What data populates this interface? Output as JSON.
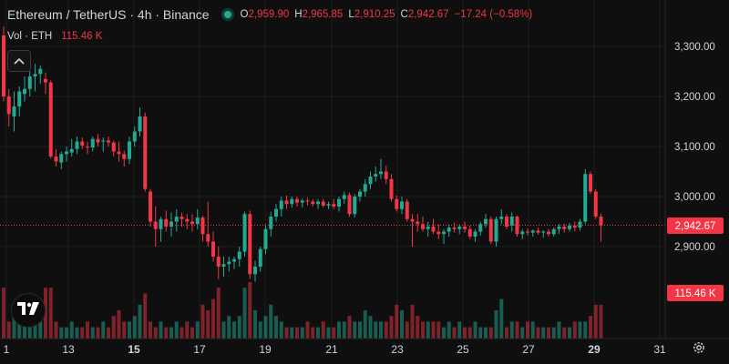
{
  "symbol": {
    "title": "Ethereum / TetherUS · 4h · Binance",
    "open_label": "O",
    "open": "2,959.90",
    "high_label": "H",
    "high": "2,965.85",
    "low_label": "L",
    "low": "2,910.25",
    "close_label": "C",
    "close": "2,942.67",
    "change": "−17.24 (−0.58%)"
  },
  "volume": {
    "label": "Vol · ETH",
    "value": "115.46 K"
  },
  "price_scale": {
    "ticks": [
      "3,300.00",
      "3,200.00",
      "3,100.00",
      "3,000.00",
      "2,900.00"
    ]
  },
  "last_price_label": "2,942.67",
  "volume_label": "115.46 K",
  "time_scale": {
    "ticks": [
      "1",
      "13",
      "15",
      "17",
      "19",
      "21",
      "23",
      "25",
      "27",
      "29",
      "31"
    ]
  },
  "colors": {
    "up": "#22ab94",
    "down": "#f23645",
    "background": "#0f0f0f",
    "grid": "#1e1e1e",
    "text": "#d1d4dc"
  },
  "icons": {
    "collapse": "chevron-up-icon",
    "logo": "tradingview-logo-icon",
    "settings": "gear-icon"
  },
  "chart_data": {
    "type": "candlestick",
    "interval": "4h",
    "ylim": [
      2830,
      3340
    ],
    "candles": [
      [
        3322,
        3340,
        3190,
        3200
      ],
      [
        3200,
        3215,
        3140,
        3165
      ],
      [
        3160,
        3210,
        3130,
        3180
      ],
      [
        3180,
        3220,
        3160,
        3210
      ],
      [
        3205,
        3240,
        3190,
        3215
      ],
      [
        3215,
        3250,
        3200,
        3240
      ],
      [
        3240,
        3265,
        3210,
        3245
      ],
      [
        3245,
        3262,
        3225,
        3255
      ],
      [
        3235,
        3248,
        3205,
        3228
      ],
      [
        3228,
        3232,
        3076,
        3080
      ],
      [
        3080,
        3095,
        3060,
        3070
      ],
      [
        3068,
        3090,
        3055,
        3085
      ],
      [
        3085,
        3100,
        3070,
        3090
      ],
      [
        3088,
        3115,
        3080,
        3095
      ],
      [
        3095,
        3120,
        3085,
        3110
      ],
      [
        3110,
        3118,
        3095,
        3102
      ],
      [
        3100,
        3110,
        3085,
        3098
      ],
      [
        3098,
        3120,
        3090,
        3115
      ],
      [
        3115,
        3125,
        3100,
        3108
      ],
      [
        3110,
        3118,
        3090,
        3112
      ],
      [
        3112,
        3120,
        3100,
        3108
      ],
      [
        3108,
        3112,
        3080,
        3090
      ],
      [
        3090,
        3110,
        3070,
        3085
      ],
      [
        3085,
        3092,
        3060,
        3075
      ],
      [
        3075,
        3120,
        3065,
        3110
      ],
      [
        3110,
        3140,
        3100,
        3130
      ],
      [
        3130,
        3178,
        3120,
        3160
      ],
      [
        3160,
        3168,
        3010,
        3015
      ],
      [
        3010,
        3015,
        2940,
        2950
      ],
      [
        2950,
        2980,
        2900,
        2935
      ],
      [
        2935,
        2960,
        2910,
        2955
      ],
      [
        2955,
        2972,
        2930,
        2940
      ],
      [
        2940,
        2968,
        2920,
        2950
      ],
      [
        2950,
        2975,
        2930,
        2960
      ],
      [
        2960,
        2968,
        2940,
        2955
      ],
      [
        2955,
        2965,
        2935,
        2950
      ],
      [
        2950,
        2965,
        2930,
        2945
      ],
      [
        2945,
        2975,
        2935,
        2958
      ],
      [
        2958,
        2962,
        2910,
        2925
      ],
      [
        2925,
        2990,
        2900,
        2910
      ],
      [
        2910,
        2930,
        2870,
        2880
      ],
      [
        2880,
        2900,
        2835,
        2860
      ],
      [
        2860,
        2880,
        2840,
        2865
      ],
      [
        2865,
        2880,
        2850,
        2870
      ],
      [
        2870,
        2880,
        2855,
        2875
      ],
      [
        2875,
        2900,
        2860,
        2890
      ],
      [
        2890,
        2970,
        2880,
        2965
      ],
      [
        2965,
        2972,
        2835,
        2845
      ],
      [
        2845,
        2872,
        2830,
        2860
      ],
      [
        2860,
        2900,
        2850,
        2895
      ],
      [
        2895,
        2945,
        2885,
        2935
      ],
      [
        2935,
        2970,
        2920,
        2960
      ],
      [
        2960,
        2985,
        2950,
        2975
      ],
      [
        2975,
        3000,
        2960,
        2992
      ],
      [
        2992,
        3002,
        2975,
        2985
      ],
      [
        2985,
        3000,
        2978,
        2995
      ],
      [
        2995,
        3000,
        2980,
        2988
      ],
      [
        2988,
        2996,
        2978,
        2992
      ],
      [
        2992,
        2998,
        2982,
        2990
      ],
      [
        2990,
        2995,
        2980,
        2985
      ],
      [
        2985,
        2995,
        2975,
        2990
      ],
      [
        2990,
        2995,
        2978,
        2982
      ],
      [
        2982,
        2990,
        2975,
        2985
      ],
      [
        2985,
        2995,
        2975,
        2980
      ],
      [
        2980,
        3000,
        2970,
        2995
      ],
      [
        2995,
        3010,
        2985,
        3003
      ],
      [
        3003,
        3008,
        2960,
        2965
      ],
      [
        2965,
        3005,
        2958,
        3000
      ],
      [
        3000,
        3015,
        2990,
        3010
      ],
      [
        3010,
        3035,
        3000,
        3025
      ],
      [
        3025,
        3050,
        3015,
        3040
      ],
      [
        3040,
        3060,
        3030,
        3045
      ],
      [
        3045,
        3075,
        3035,
        3050
      ],
      [
        3050,
        3062,
        3025,
        3035
      ],
      [
        3035,
        3045,
        2990,
        2995
      ],
      [
        2995,
        3002,
        2970,
        2975
      ],
      [
        2975,
        3000,
        2965,
        2990
      ],
      [
        2990,
        2995,
        2950,
        2955
      ],
      [
        2955,
        2965,
        2900,
        2950
      ],
      [
        2950,
        2965,
        2930,
        2945
      ],
      [
        2945,
        2960,
        2930,
        2935
      ],
      [
        2935,
        2950,
        2920,
        2940
      ],
      [
        2940,
        2955,
        2925,
        2930
      ],
      [
        2930,
        2945,
        2915,
        2925
      ],
      [
        2925,
        2935,
        2905,
        2930
      ],
      [
        2930,
        2945,
        2920,
        2938
      ],
      [
        2938,
        2948,
        2928,
        2935
      ],
      [
        2935,
        2945,
        2925,
        2940
      ],
      [
        2940,
        2950,
        2928,
        2935
      ],
      [
        2935,
        2942,
        2915,
        2920
      ],
      [
        2920,
        2935,
        2910,
        2930
      ],
      [
        2930,
        2950,
        2922,
        2945
      ],
      [
        2945,
        2965,
        2938,
        2955
      ],
      [
        2955,
        2960,
        2905,
        2910
      ],
      [
        2910,
        2960,
        2900,
        2955
      ],
      [
        2955,
        2975,
        2945,
        2960
      ],
      [
        2960,
        2965,
        2935,
        2940
      ],
      [
        2942,
        2968,
        2930,
        2960
      ],
      [
        2960,
        2962,
        2920,
        2925
      ],
      [
        2925,
        2935,
        2915,
        2930
      ],
      [
        2930,
        2936,
        2922,
        2928
      ],
      [
        2928,
        2934,
        2920,
        2932
      ],
      [
        2932,
        2938,
        2924,
        2928
      ],
      [
        2928,
        2933,
        2918,
        2930
      ],
      [
        2930,
        2935,
        2920,
        2925
      ],
      [
        2925,
        2938,
        2920,
        2935
      ],
      [
        2935,
        2945,
        2925,
        2940
      ],
      [
        2940,
        2946,
        2928,
        2935
      ],
      [
        2935,
        2948,
        2930,
        2942
      ],
      [
        2942,
        2950,
        2930,
        2938
      ],
      [
        2938,
        2955,
        2932,
        2950
      ],
      [
        2950,
        3055,
        2945,
        3045
      ],
      [
        3045,
        3050,
        3005,
        3010
      ],
      [
        3010,
        3015,
        2955,
        2960
      ],
      [
        2960,
        2966,
        2910,
        2943
      ]
    ],
    "volume": [
      0.9,
      0.3,
      0.5,
      0.3,
      0.4,
      0.3,
      0.5,
      0.3,
      0.9,
      0.9,
      0.3,
      0.2,
      0.2,
      0.3,
      0.2,
      0.2,
      0.3,
      0.2,
      0.2,
      0.3,
      0.2,
      0.4,
      0.5,
      0.3,
      0.3,
      0.4,
      0.6,
      0.8,
      0.3,
      0.2,
      0.3,
      0.2,
      0.2,
      0.3,
      0.2,
      0.3,
      0.2,
      0.3,
      0.6,
      0.5,
      0.7,
      0.9,
      0.3,
      0.4,
      0.3,
      0.4,
      0.9,
      1.0,
      0.5,
      0.3,
      0.4,
      0.6,
      0.4,
      0.3,
      0.2,
      0.2,
      0.2,
      0.2,
      0.3,
      0.2,
      0.2,
      0.3,
      0.2,
      0.2,
      0.3,
      0.3,
      0.4,
      0.3,
      0.3,
      0.5,
      0.4,
      0.3,
      0.3,
      0.3,
      0.4,
      0.6,
      0.5,
      0.3,
      0.6,
      0.4,
      0.3,
      0.3,
      0.3,
      0.3,
      0.2,
      0.3,
      0.2,
      0.3,
      0.2,
      0.2,
      0.3,
      0.2,
      0.2,
      0.2,
      0.5,
      0.7,
      0.2,
      0.3,
      0.3,
      0.2,
      0.3,
      0.3,
      0.2,
      0.2,
      0.2,
      0.2,
      0.3,
      0.2,
      0.2,
      0.3,
      0.3,
      0.3,
      0.4,
      0.6,
      0.6,
      0.5,
      0.6
    ]
  }
}
